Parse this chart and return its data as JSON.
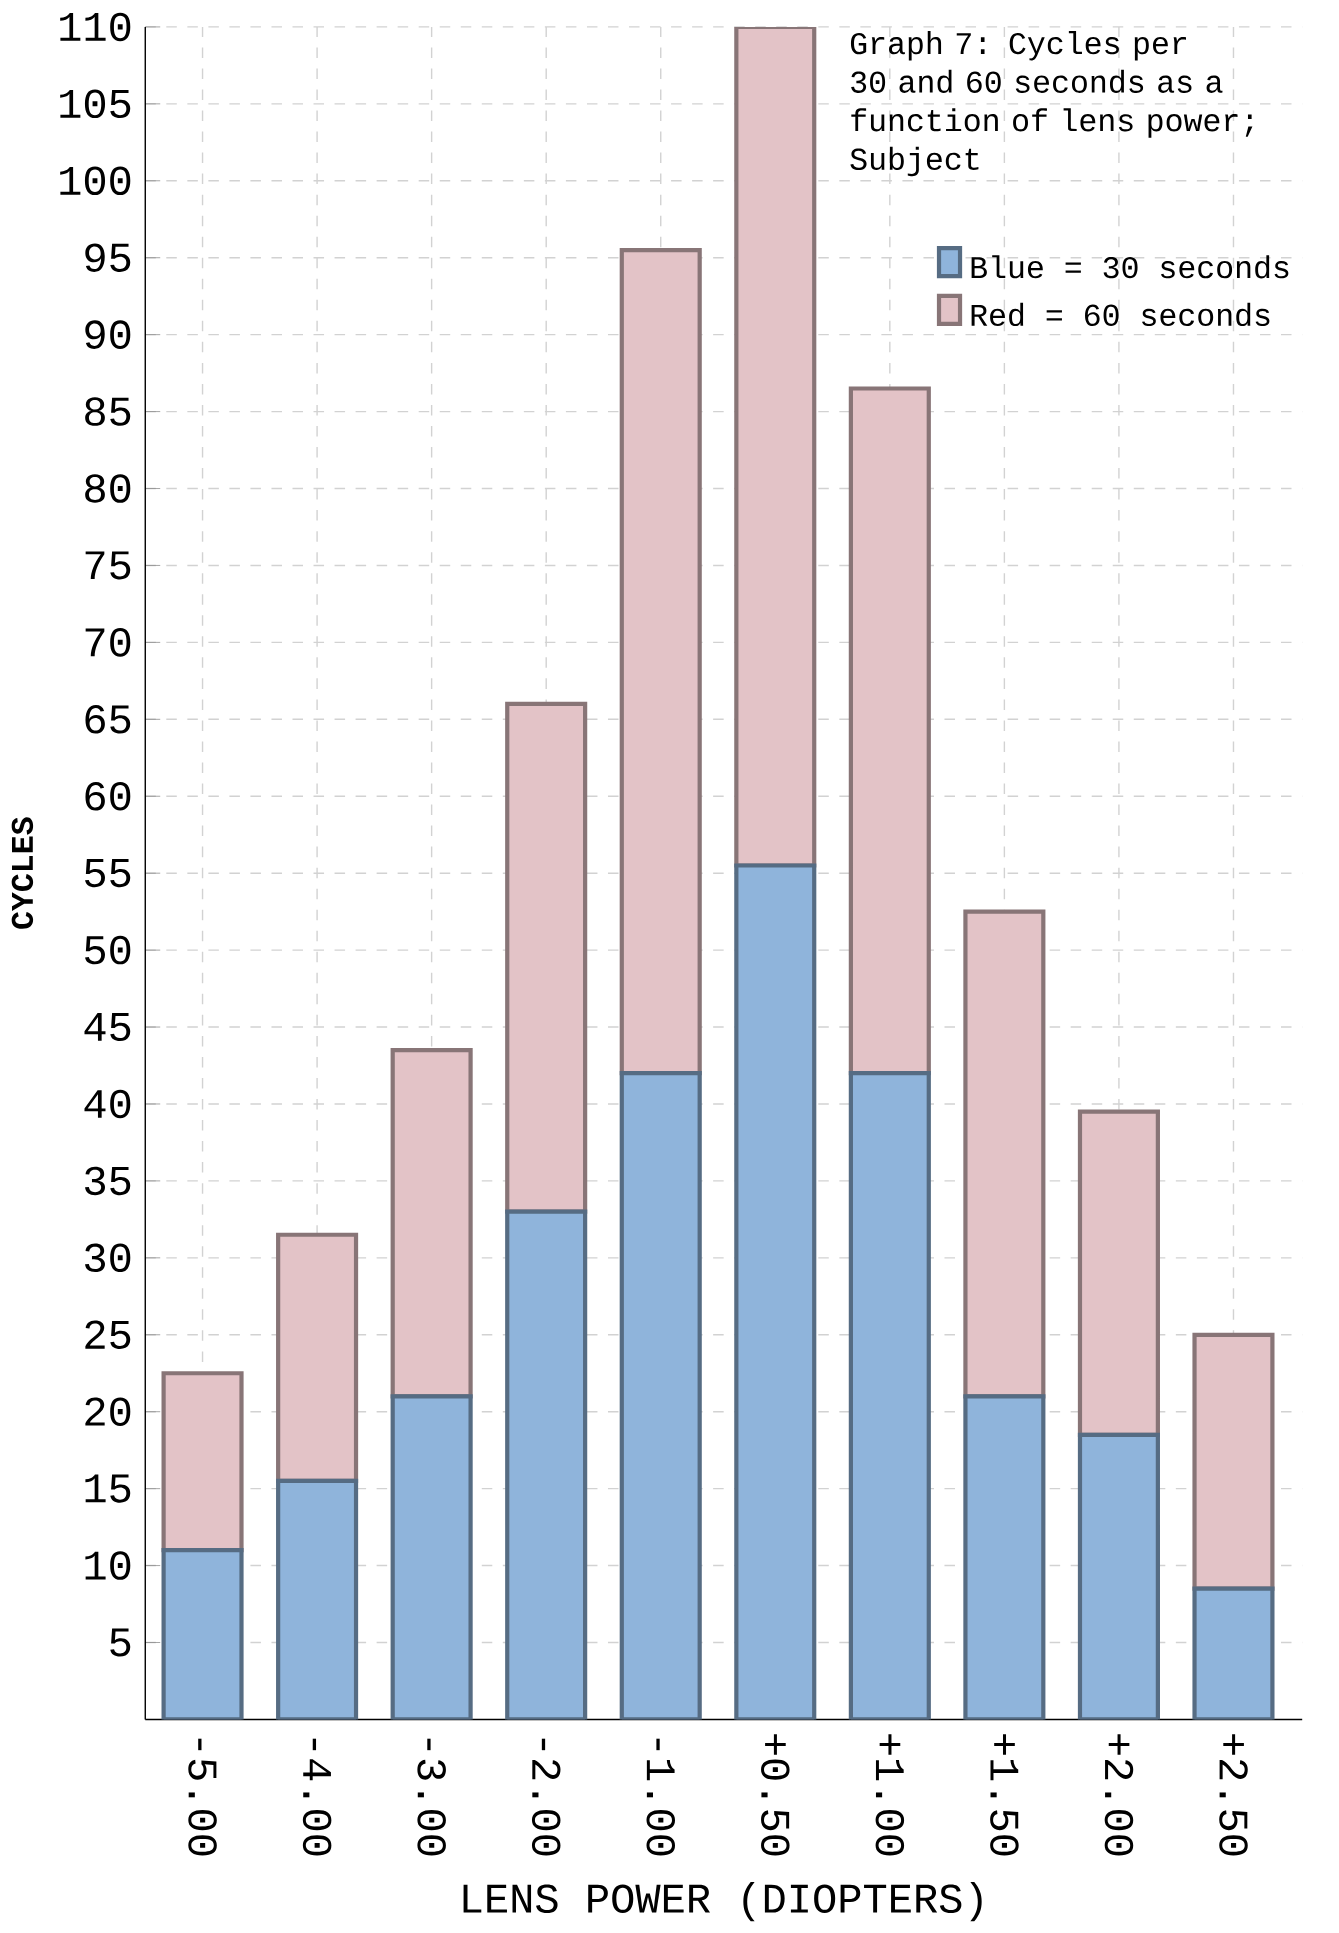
{
  "chart_data": {
    "type": "bar",
    "stacked": true,
    "title": "Graph 7: Cycles per 30 and 60 seconds as a function of lens power; Subject",
    "xlabel": "LENS POWER (DIOPTERS)",
    "ylabel": "CYCLES",
    "categories": [
      "-5.00",
      "-4.00",
      "-3.00",
      "-2.00",
      "-1.00",
      "+0.50",
      "+1.00",
      "+1.50",
      "+2.00",
      "+2.50"
    ],
    "series": [
      {
        "name": "Blue = 30 seconds",
        "color": "#8fb4db",
        "values": [
          11,
          15.5,
          21,
          33,
          42,
          55.5,
          42,
          21,
          18.5,
          8.5
        ]
      },
      {
        "name": "Red = 60 seconds",
        "color": "#e3c3c7",
        "values": [
          11.5,
          16,
          22.5,
          33,
          53.5,
          54.5,
          44.5,
          31.5,
          21,
          16.5
        ]
      }
    ],
    "ylim": [
      0,
      110
    ],
    "yticks": [
      5,
      10,
      15,
      20,
      25,
      30,
      35,
      40,
      45,
      50,
      55,
      60,
      65,
      70,
      75,
      80,
      85,
      90,
      95,
      100,
      105,
      110
    ],
    "grid": true,
    "legend": "top right"
  }
}
